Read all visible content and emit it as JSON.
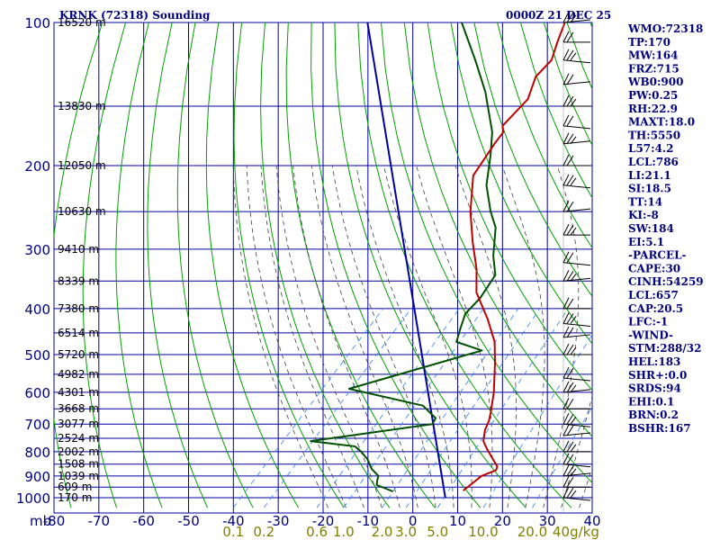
{
  "header": {
    "station": "KRNK (72318) Sounding",
    "time": "0000Z 21 DEC 25"
  },
  "colors": {
    "grid": "#0000a0",
    "dry_adiabat": "#00a000",
    "moist_adiabat": "#404040",
    "mixing_ratio": "#3080ff",
    "temperature": "#c00000",
    "dewpoint": "#005000",
    "parcel": "#0000a0",
    "wind": "#000000"
  },
  "chart_data": {
    "type": "line",
    "diagram": "skew-T log-P",
    "pressure_levels": [
      "100",
      "200",
      "300",
      "400",
      "500",
      "600",
      "700",
      "800",
      "900",
      "1000"
    ],
    "pressure_unit_label": "mb",
    "temperature_ticks": [
      "-80",
      "-70",
      "-60",
      "-50",
      "-40",
      "-30",
      "-20",
      "-10",
      "0",
      "10",
      "20",
      "30",
      "40"
    ],
    "temperature_range": [
      -80,
      40
    ],
    "pressure_range": [
      100,
      1050
    ],
    "height_labels": [
      {
        "p": 100,
        "label": "16520 m"
      },
      {
        "p": 150,
        "label": "13830 m"
      },
      {
        "p": 200,
        "label": "12050 m"
      },
      {
        "p": 250,
        "label": "10630 m"
      },
      {
        "p": 300,
        "label": "9410 m"
      },
      {
        "p": 350,
        "label": "8339 m"
      },
      {
        "p": 400,
        "label": "7380 m"
      },
      {
        "p": 450,
        "label": "6514 m"
      },
      {
        "p": 500,
        "label": "5720 m"
      },
      {
        "p": 550,
        "label": "4982 m"
      },
      {
        "p": 600,
        "label": "4301 m"
      },
      {
        "p": 650,
        "label": "3668 m"
      },
      {
        "p": 700,
        "label": "3077 m"
      },
      {
        "p": 750,
        "label": "2524 m"
      },
      {
        "p": 800,
        "label": "2002 m"
      },
      {
        "p": 850,
        "label": "1508 m"
      },
      {
        "p": 900,
        "label": "1039 m"
      },
      {
        "p": 950,
        "label": "609 m"
      },
      {
        "p": 1000,
        "label": "170 m"
      }
    ],
    "mixing_ratio_labels": [
      {
        "w": 0.1,
        "label": "0.1"
      },
      {
        "w": 0.2,
        "label": "0.2"
      },
      {
        "w": 0.6,
        "label": "0.6"
      },
      {
        "w": 1.0,
        "label": "1.0"
      },
      {
        "w": 2.0,
        "label": "2.0"
      },
      {
        "w": 3.0,
        "label": "3.0"
      },
      {
        "w": 5.0,
        "label": "5.0"
      },
      {
        "w": 10.0,
        "label": "10.0"
      },
      {
        "w": 20.0,
        "label": "20.0"
      }
    ],
    "mixing_ratio_unit": "40g/kg",
    "temperature_profile": [
      [
        966,
        6.5
      ],
      [
        900,
        7.5
      ],
      [
        875,
        9.5
      ],
      [
        860,
        9.0
      ],
      [
        790,
        3.0
      ],
      [
        760,
        0.5
      ],
      [
        720,
        -1.5
      ],
      [
        690,
        -2.5
      ],
      [
        660,
        -4.0
      ],
      [
        600,
        -7.5
      ],
      [
        520,
        -13.5
      ],
      [
        470,
        -18.0
      ],
      [
        420,
        -24.5
      ],
      [
        370,
        -32.5
      ],
      [
        330,
        -37.5
      ],
      [
        290,
        -44.0
      ],
      [
        250,
        -51.0
      ],
      [
        210,
        -58.0
      ],
      [
        180,
        -60.0
      ],
      [
        170,
        -60.5
      ],
      [
        165,
        -62.0
      ],
      [
        145,
        -62.0
      ],
      [
        130,
        -65.0
      ],
      [
        120,
        -65.0
      ],
      [
        110,
        -67.5
      ],
      [
        100,
        -70.0
      ]
    ],
    "dewpoint_profile": [
      [
        970,
        -9.0
      ],
      [
        940,
        -14.0
      ],
      [
        915,
        -15.0
      ],
      [
        900,
        -15.5
      ],
      [
        870,
        -18.5
      ],
      [
        830,
        -21.5
      ],
      [
        800,
        -24.5
      ],
      [
        780,
        -27.0
      ],
      [
        760,
        -38.0
      ],
      [
        700,
        -14.5
      ],
      [
        680,
        -15.0
      ],
      [
        640,
        -20.5
      ],
      [
        590,
        -40.5
      ],
      [
        490,
        -19.0
      ],
      [
        470,
        -26.5
      ],
      [
        440,
        -28.5
      ],
      [
        410,
        -30.5
      ],
      [
        380,
        -30.5
      ],
      [
        340,
        -32.0
      ],
      [
        310,
        -36.5
      ],
      [
        270,
        -42.0
      ],
      [
        250,
        -46.5
      ],
      [
        220,
        -53.0
      ],
      [
        190,
        -58.5
      ],
      [
        170,
        -63.0
      ],
      [
        140,
        -73.0
      ],
      [
        120,
        -82.0
      ],
      [
        100,
        -93.0
      ]
    ],
    "parcel_profile": [
      [
        1000,
        4.0
      ],
      [
        100,
        -114.0
      ]
    ],
    "wind_barbs_p": [
      100,
      110,
      120,
      135,
      150,
      165,
      180,
      200,
      220,
      250,
      280,
      320,
      350,
      400,
      430,
      460,
      500,
      560,
      600,
      650,
      700,
      740,
      800,
      850,
      900,
      950,
      1000
    ]
  },
  "stats": [
    "WMO:72318",
    "TP:170",
    "MW:164",
    "FRZ:715",
    "WB0:900",
    "PW:0.25",
    "RH:22.9",
    "MAXT:18.0",
    "TH:5550",
    "L57:4.2",
    "LCL:786",
    "LI:21.1",
    "SI:18.5",
    "TT:14",
    "KI:-8",
    "SW:184",
    "EI:5.1",
    "-PARCEL-",
    "CAPE:30",
    "CINH:54259",
    "LCL:657",
    "CAP:20.5",
    "LFC:-1",
    "-WIND-",
    "STM:288/32",
    "HEL:183",
    "SHR+:0.0",
    "SRDS:94",
    "EHI:0.1",
    "BRN:0.2",
    "BSHR:167"
  ]
}
